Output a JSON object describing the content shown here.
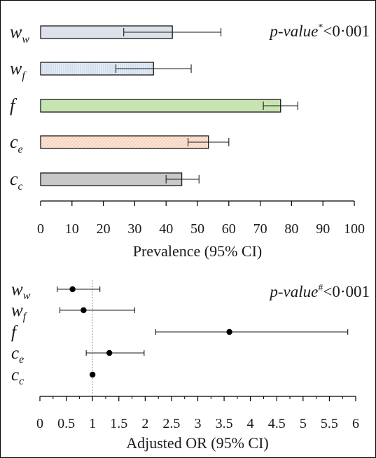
{
  "chart_data": [
    {
      "type": "bar",
      "orientation": "horizontal",
      "categories": [
        {
          "base": "w",
          "sub": "w"
        },
        {
          "base": "w",
          "sub": "f"
        },
        {
          "base": "f",
          "sub": ""
        },
        {
          "base": "c",
          "sub": "e"
        },
        {
          "base": "c",
          "sub": "c"
        }
      ],
      "values": [
        42,
        36,
        76.5,
        53.5,
        45
      ],
      "ci_low": [
        26.5,
        24,
        71,
        47,
        40
      ],
      "ci_high": [
        57.5,
        48,
        82,
        60,
        50.5
      ],
      "bar_colors": [
        "#dde1ea",
        "#e6eef8",
        "#c9e4b3",
        "#fbe3d6",
        "#c8c8c8"
      ],
      "bar_patterns": [
        "none",
        "vertical-lines",
        "none",
        "diagonal-hatch",
        "none"
      ],
      "xlabel": "Prevalence (95% CI)",
      "xlim": [
        0,
        100
      ],
      "xticks": [
        "0",
        "10",
        "20",
        "30",
        "40",
        "50",
        "60",
        "70",
        "80",
        "90",
        "100"
      ],
      "annotation": {
        "label": "p-value",
        "mark": "*",
        "text": "<0·001"
      },
      "grid": false,
      "legend": "none"
    },
    {
      "type": "scatter",
      "style": "forest-plot",
      "categories": [
        {
          "base": "w",
          "sub": "w"
        },
        {
          "base": "w",
          "sub": "f"
        },
        {
          "base": "f",
          "sub": ""
        },
        {
          "base": "c",
          "sub": "e"
        },
        {
          "base": "c",
          "sub": "c"
        }
      ],
      "values": [
        0.62,
        0.83,
        3.6,
        1.32,
        1.0
      ],
      "ci_low": [
        0.33,
        0.38,
        2.2,
        0.88,
        1.0
      ],
      "ci_high": [
        1.14,
        1.8,
        5.85,
        1.98,
        1.0
      ],
      "reference_line": 1,
      "xlabel": "Adjusted OR (95% CI)",
      "xlim": [
        0,
        6
      ],
      "xticks": [
        "0",
        "0.5",
        "1",
        "1.5",
        "2",
        "2.5",
        "3",
        "3.5",
        "4",
        "4.5",
        "5",
        "5.5",
        "6"
      ],
      "annotation": {
        "label": "p-value",
        "mark": "#",
        "text": "<0·001"
      },
      "grid": false,
      "legend": "none"
    }
  ]
}
